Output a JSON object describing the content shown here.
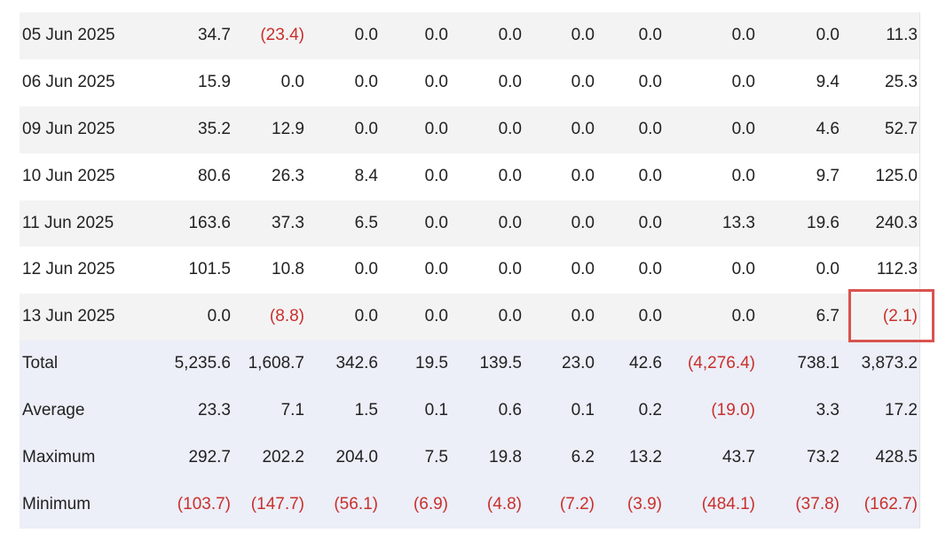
{
  "table": {
    "rows": [
      [
        "05 Jun 2025",
        "34.7",
        "(23.4)",
        "0.0",
        "0.0",
        "0.0",
        "0.0",
        "0.0",
        "0.0",
        "0.0",
        "11.3"
      ],
      [
        "06 Jun 2025",
        "15.9",
        "0.0",
        "0.0",
        "0.0",
        "0.0",
        "0.0",
        "0.0",
        "0.0",
        "9.4",
        "25.3"
      ],
      [
        "09 Jun 2025",
        "35.2",
        "12.9",
        "0.0",
        "0.0",
        "0.0",
        "0.0",
        "0.0",
        "0.0",
        "4.6",
        "52.7"
      ],
      [
        "10 Jun 2025",
        "80.6",
        "26.3",
        "8.4",
        "0.0",
        "0.0",
        "0.0",
        "0.0",
        "0.0",
        "9.7",
        "125.0"
      ],
      [
        "11 Jun 2025",
        "163.6",
        "37.3",
        "6.5",
        "0.0",
        "0.0",
        "0.0",
        "0.0",
        "13.3",
        "19.6",
        "240.3"
      ],
      [
        "12 Jun 2025",
        "101.5",
        "10.8",
        "0.0",
        "0.0",
        "0.0",
        "0.0",
        "0.0",
        "0.0",
        "0.0",
        "112.3"
      ],
      [
        "13 Jun 2025",
        "0.0",
        "(8.8)",
        "0.0",
        "0.0",
        "0.0",
        "0.0",
        "0.0",
        "0.0",
        "6.7",
        "(2.1)"
      ]
    ],
    "summary": [
      [
        "Total",
        "5,235.6",
        "1,608.7",
        "342.6",
        "19.5",
        "139.5",
        "23.0",
        "42.6",
        "(4,276.4)",
        "738.1",
        "3,873.2"
      ],
      [
        "Average",
        "23.3",
        "7.1",
        "1.5",
        "0.1",
        "0.6",
        "0.1",
        "0.2",
        "(19.0)",
        "3.3",
        "17.2"
      ],
      [
        "Maximum",
        "292.7",
        "202.2",
        "204.0",
        "7.5",
        "19.8",
        "6.2",
        "13.2",
        "43.7",
        "73.2",
        "428.5"
      ],
      [
        "Minimum",
        "(103.7)",
        "(147.7)",
        "(56.1)",
        "(6.9)",
        "(4.8)",
        "(7.2)",
        "(3.9)",
        "(484.1)",
        "(37.8)",
        "(162.7)"
      ]
    ]
  }
}
